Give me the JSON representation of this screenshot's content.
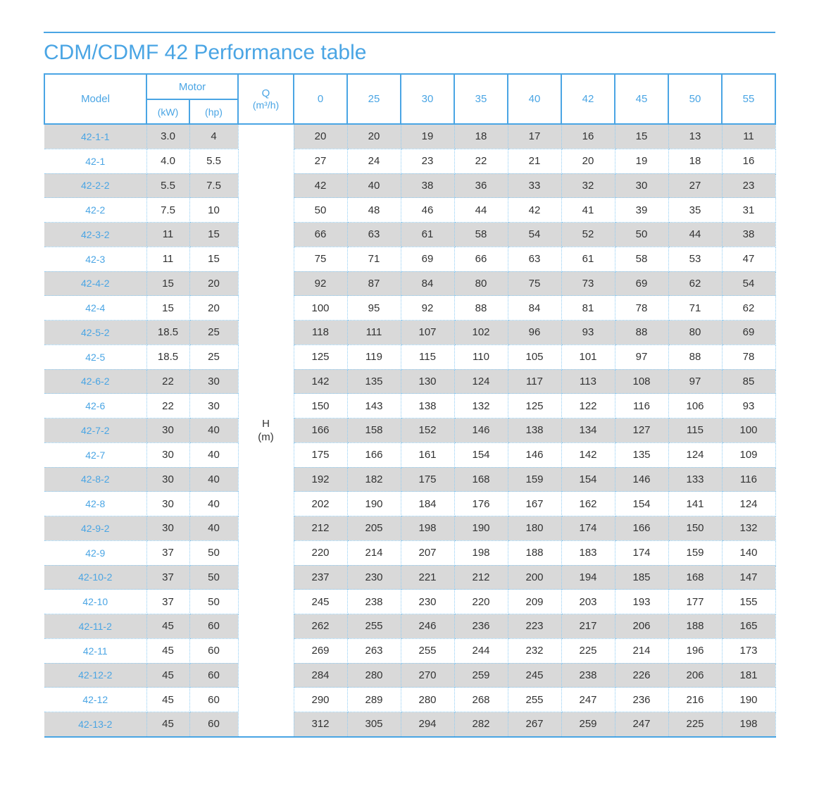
{
  "page": {
    "title": "CDM/CDMF 42 Performance table"
  },
  "colors": {
    "accent_blue": "#4aa5e4",
    "dotted_border_blue": "#8fccf3",
    "row_shade_gray": "#d9d9d9",
    "body_text": "#333333"
  },
  "table": {
    "headers": {
      "model": "Model",
      "motor": "Motor",
      "motor_kw": "(kW)",
      "motor_hp": "(hp)",
      "q_label": "Q",
      "q_unit": "(m³/h)",
      "flow_columns": [
        "0",
        "25",
        "30",
        "35",
        "40",
        "42",
        "45",
        "50",
        "55"
      ],
      "h_label": "H",
      "h_unit": "(m)"
    },
    "rows": [
      {
        "model": "42-1-1",
        "kw": "3.0",
        "hp": "4",
        "values": [
          20,
          20,
          19,
          18,
          17,
          16,
          15,
          13,
          11
        ]
      },
      {
        "model": "42-1",
        "kw": "4.0",
        "hp": "5.5",
        "values": [
          27,
          24,
          23,
          22,
          21,
          20,
          19,
          18,
          16
        ]
      },
      {
        "model": "42-2-2",
        "kw": "5.5",
        "hp": "7.5",
        "values": [
          42,
          40,
          38,
          36,
          33,
          32,
          30,
          27,
          23
        ]
      },
      {
        "model": "42-2",
        "kw": "7.5",
        "hp": "10",
        "values": [
          50,
          48,
          46,
          44,
          42,
          41,
          39,
          35,
          31
        ]
      },
      {
        "model": "42-3-2",
        "kw": "11",
        "hp": "15",
        "values": [
          66,
          63,
          61,
          58,
          54,
          52,
          50,
          44,
          38
        ]
      },
      {
        "model": "42-3",
        "kw": "11",
        "hp": "15",
        "values": [
          75,
          71,
          69,
          66,
          63,
          61,
          58,
          53,
          47
        ]
      },
      {
        "model": "42-4-2",
        "kw": "15",
        "hp": "20",
        "values": [
          92,
          87,
          84,
          80,
          75,
          73,
          69,
          62,
          54
        ]
      },
      {
        "model": "42-4",
        "kw": "15",
        "hp": "20",
        "values": [
          100,
          95,
          92,
          88,
          84,
          81,
          78,
          71,
          62
        ]
      },
      {
        "model": "42-5-2",
        "kw": "18.5",
        "hp": "25",
        "values": [
          118,
          111,
          107,
          102,
          96,
          93,
          88,
          80,
          69
        ]
      },
      {
        "model": "42-5",
        "kw": "18.5",
        "hp": "25",
        "values": [
          125,
          119,
          115,
          110,
          105,
          101,
          97,
          88,
          78
        ]
      },
      {
        "model": "42-6-2",
        "kw": "22",
        "hp": "30",
        "values": [
          142,
          135,
          130,
          124,
          117,
          113,
          108,
          97,
          85
        ]
      },
      {
        "model": "42-6",
        "kw": "22",
        "hp": "30",
        "values": [
          150,
          143,
          138,
          132,
          125,
          122,
          116,
          106,
          93
        ]
      },
      {
        "model": "42-7-2",
        "kw": "30",
        "hp": "40",
        "values": [
          166,
          158,
          152,
          146,
          138,
          134,
          127,
          115,
          100
        ]
      },
      {
        "model": "42-7",
        "kw": "30",
        "hp": "40",
        "values": [
          175,
          166,
          161,
          154,
          146,
          142,
          135,
          124,
          109
        ]
      },
      {
        "model": "42-8-2",
        "kw": "30",
        "hp": "40",
        "values": [
          192,
          182,
          175,
          168,
          159,
          154,
          146,
          133,
          116
        ]
      },
      {
        "model": "42-8",
        "kw": "30",
        "hp": "40",
        "values": [
          202,
          190,
          184,
          176,
          167,
          162,
          154,
          141,
          124
        ]
      },
      {
        "model": "42-9-2",
        "kw": "30",
        "hp": "40",
        "values": [
          212,
          205,
          198,
          190,
          180,
          174,
          166,
          150,
          132
        ]
      },
      {
        "model": "42-9",
        "kw": "37",
        "hp": "50",
        "values": [
          220,
          214,
          207,
          198,
          188,
          183,
          174,
          159,
          140
        ]
      },
      {
        "model": "42-10-2",
        "kw": "37",
        "hp": "50",
        "values": [
          237,
          230,
          221,
          212,
          200,
          194,
          185,
          168,
          147
        ]
      },
      {
        "model": "42-10",
        "kw": "37",
        "hp": "50",
        "values": [
          245,
          238,
          230,
          220,
          209,
          203,
          193,
          177,
          155
        ]
      },
      {
        "model": "42-11-2",
        "kw": "45",
        "hp": "60",
        "values": [
          262,
          255,
          246,
          236,
          223,
          217,
          206,
          188,
          165
        ]
      },
      {
        "model": "42-11",
        "kw": "45",
        "hp": "60",
        "values": [
          269,
          263,
          255,
          244,
          232,
          225,
          214,
          196,
          173
        ]
      },
      {
        "model": "42-12-2",
        "kw": "45",
        "hp": "60",
        "values": [
          284,
          280,
          270,
          259,
          245,
          238,
          226,
          206,
          181
        ]
      },
      {
        "model": "42-12",
        "kw": "45",
        "hp": "60",
        "values": [
          290,
          289,
          280,
          268,
          255,
          247,
          236,
          216,
          190
        ]
      },
      {
        "model": "42-13-2",
        "kw": "45",
        "hp": "60",
        "values": [
          312,
          305,
          294,
          282,
          267,
          259,
          247,
          225,
          198
        ]
      }
    ]
  }
}
